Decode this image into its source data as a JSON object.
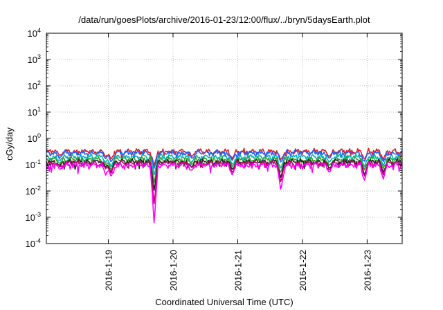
{
  "chart_data": {
    "type": "line",
    "title": "/data/run/goesPlots/archive/2016-01-23/12:00/flux/../bryn/5daysEarth.plot",
    "xlabel": "Coordinated Universal Time (UTC)",
    "ylabel": "cGy/day",
    "y_scale": "log",
    "ylim": [
      0.0001,
      10000
    ],
    "y_ticks": [
      {
        "value": 0.0001,
        "base": "10",
        "exp": "-4"
      },
      {
        "value": 0.001,
        "base": "10",
        "exp": "-3"
      },
      {
        "value": 0.01,
        "base": "10",
        "exp": "-2"
      },
      {
        "value": 0.1,
        "base": "10",
        "exp": "-1"
      },
      {
        "value": 1,
        "base": "10",
        "exp": "0"
      },
      {
        "value": 10,
        "base": "10",
        "exp": "1"
      },
      {
        "value": 100,
        "base": "10",
        "exp": "2"
      },
      {
        "value": 1000,
        "base": "10",
        "exp": "3"
      },
      {
        "value": 10000,
        "base": "10",
        "exp": "4"
      }
    ],
    "xlim": [
      "2016-01-18T01:00",
      "2016-01-23T13:00"
    ],
    "x_ticks": [
      {
        "value": "2016-01-19T00:00",
        "label": "2016-1-19"
      },
      {
        "value": "2016-01-20T00:00",
        "label": "2016-1-20"
      },
      {
        "value": "2016-01-21T00:00",
        "label": "2016-1-21"
      },
      {
        "value": "2016-01-22T00:00",
        "label": "2016-1-22"
      },
      {
        "value": "2016-01-23T00:00",
        "label": "2016-1-23"
      }
    ],
    "grid": true,
    "legend": "none",
    "series": [
      {
        "color": "#e31a1c",
        "base": 0.32,
        "dips": [
          {
            "t": "2016-01-18T06:00",
            "v": 0.22
          },
          {
            "t": "2016-01-18T23:00",
            "v": 0.2
          },
          {
            "t": "2016-01-19T01:00",
            "v": 0.15
          },
          {
            "t": "2016-01-19T17:00",
            "v": 0.09
          },
          {
            "t": "2016-01-20T07:00",
            "v": 0.2
          },
          {
            "t": "2016-01-20T22:00",
            "v": 0.17
          },
          {
            "t": "2016-01-21T16:00",
            "v": 0.15
          },
          {
            "t": "2016-01-22T10:00",
            "v": 0.2
          },
          {
            "t": "2016-01-22T23:00",
            "v": 0.16
          },
          {
            "t": "2016-01-23T06:00",
            "v": 0.16
          }
        ]
      },
      {
        "color": "#1f5fff",
        "base": 0.28,
        "dips": [
          {
            "t": "2016-01-18T06:00",
            "v": 0.19
          },
          {
            "t": "2016-01-18T23:00",
            "v": 0.17
          },
          {
            "t": "2016-01-19T01:00",
            "v": 0.12
          },
          {
            "t": "2016-01-19T17:00",
            "v": 0.07
          },
          {
            "t": "2016-01-20T07:00",
            "v": 0.17
          },
          {
            "t": "2016-01-20T22:00",
            "v": 0.14
          },
          {
            "t": "2016-01-21T16:00",
            "v": 0.12
          },
          {
            "t": "2016-01-22T10:00",
            "v": 0.17
          },
          {
            "t": "2016-01-22T23:00",
            "v": 0.13
          },
          {
            "t": "2016-01-23T06:00",
            "v": 0.13
          }
        ]
      },
      {
        "color": "#00b3b3",
        "base": 0.2,
        "dips": [
          {
            "t": "2016-01-18T06:00",
            "v": 0.14
          },
          {
            "t": "2016-01-18T23:00",
            "v": 0.12
          },
          {
            "t": "2016-01-19T01:00",
            "v": 0.08
          },
          {
            "t": "2016-01-19T17:00",
            "v": 0.04
          },
          {
            "t": "2016-01-20T07:00",
            "v": 0.13
          },
          {
            "t": "2016-01-20T22:00",
            "v": 0.1
          },
          {
            "t": "2016-01-21T16:00",
            "v": 0.07
          },
          {
            "t": "2016-01-22T10:00",
            "v": 0.12
          },
          {
            "t": "2016-01-22T23:00",
            "v": 0.08
          },
          {
            "t": "2016-01-23T06:00",
            "v": 0.09
          }
        ]
      },
      {
        "color": "#33a02c",
        "base": 0.16,
        "dips": [
          {
            "t": "2016-01-18T06:00",
            "v": 0.11
          },
          {
            "t": "2016-01-18T23:00",
            "v": 0.1
          },
          {
            "t": "2016-01-19T01:00",
            "v": 0.06
          },
          {
            "t": "2016-01-19T17:00",
            "v": 0.02
          },
          {
            "t": "2016-01-20T07:00",
            "v": 0.1
          },
          {
            "t": "2016-01-20T22:00",
            "v": 0.08
          },
          {
            "t": "2016-01-21T16:00",
            "v": 0.05
          },
          {
            "t": "2016-01-22T10:00",
            "v": 0.09
          },
          {
            "t": "2016-01-22T23:00",
            "v": 0.06
          },
          {
            "t": "2016-01-23T06:00",
            "v": 0.07
          }
        ]
      },
      {
        "color": "#222222",
        "base": 0.13,
        "dips": [
          {
            "t": "2016-01-18T06:00",
            "v": 0.09
          },
          {
            "t": "2016-01-18T23:00",
            "v": 0.08
          },
          {
            "t": "2016-01-19T01:00",
            "v": 0.05
          },
          {
            "t": "2016-01-19T17:00",
            "v": 0.01
          },
          {
            "t": "2016-01-20T07:00",
            "v": 0.08
          },
          {
            "t": "2016-01-20T22:00",
            "v": 0.065
          },
          {
            "t": "2016-01-21T16:00",
            "v": 0.03
          },
          {
            "t": "2016-01-22T10:00",
            "v": 0.07
          },
          {
            "t": "2016-01-22T23:00",
            "v": 0.04
          },
          {
            "t": "2016-01-23T06:00",
            "v": 0.05
          }
        ]
      },
      {
        "color": "#c0006f",
        "base": 0.115,
        "dips": [
          {
            "t": "2016-01-18T06:00",
            "v": 0.08
          },
          {
            "t": "2016-01-18T23:00",
            "v": 0.07
          },
          {
            "t": "2016-01-19T01:00",
            "v": 0.045
          },
          {
            "t": "2016-01-19T17:00",
            "v": 0.003
          },
          {
            "t": "2016-01-20T07:00",
            "v": 0.075
          },
          {
            "t": "2016-01-20T22:00",
            "v": 0.05
          },
          {
            "t": "2016-01-21T16:00",
            "v": 0.02
          },
          {
            "t": "2016-01-22T10:00",
            "v": 0.06
          },
          {
            "t": "2016-01-22T23:00",
            "v": 0.035
          },
          {
            "t": "2016-01-23T06:00",
            "v": 0.04
          }
        ]
      },
      {
        "color": "#ff00ff",
        "base": 0.095,
        "dips": [
          {
            "t": "2016-01-18T06:00",
            "v": 0.065
          },
          {
            "t": "2016-01-18T23:00",
            "v": 0.04
          },
          {
            "t": "2016-01-19T01:00",
            "v": 0.033
          },
          {
            "t": "2016-01-19T17:00",
            "v": 0.00055
          },
          {
            "t": "2016-01-20T07:00",
            "v": 0.06
          },
          {
            "t": "2016-01-20T22:00",
            "v": 0.04
          },
          {
            "t": "2016-01-21T16:00",
            "v": 0.01
          },
          {
            "t": "2016-01-22T10:00",
            "v": 0.05
          },
          {
            "t": "2016-01-22T23:00",
            "v": 0.024
          },
          {
            "t": "2016-01-23T06:00",
            "v": 0.028
          }
        ]
      }
    ]
  }
}
